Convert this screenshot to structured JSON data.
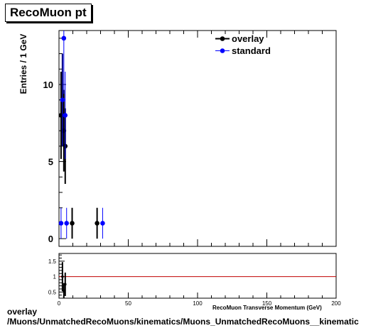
{
  "chart_data": [
    {
      "type": "scatter",
      "title": "RecoMuon pt",
      "xlabel": "RecoMuon Transverse Momentum (GeV)",
      "ylabel": "Entries / 1 GeV",
      "xlim": [
        0,
        200
      ],
      "ylim": [
        -0.5,
        13.5
      ],
      "yticks": [
        0,
        5,
        10
      ],
      "xticks": [
        0,
        50,
        100,
        150,
        200
      ],
      "legend_position": "top-right",
      "series": [
        {
          "name": "overlay",
          "color": "#000000",
          "x": [
            1.5,
            2.5,
            3.5,
            4.5,
            9.5,
            27.5
          ],
          "y": [
            8,
            9,
            7,
            6,
            1,
            1
          ],
          "yerr": [
            2.83,
            3.0,
            2.65,
            2.45,
            1,
            1
          ]
        },
        {
          "name": "standard",
          "color": "#0000ff",
          "x": [
            1.5,
            2.5,
            3.5,
            4.5,
            5.5,
            31.5
          ],
          "y": [
            1,
            9,
            13,
            8,
            1,
            1
          ],
          "yerr": [
            1,
            3.0,
            3.61,
            2.83,
            1,
            1
          ]
        }
      ]
    },
    {
      "type": "scatter",
      "subplot": "ratio",
      "xlim": [
        0,
        200
      ],
      "ylim": [
        0.3,
        1.75
      ],
      "yticks": [
        0.5,
        1,
        1.5
      ],
      "xticks": [
        0,
        50,
        100,
        150,
        200
      ],
      "reference_line": 1,
      "reference_color": "#c00000",
      "x": [
        2.5,
        3.5,
        4.5
      ],
      "y": [
        1.0,
        0.54,
        0.75
      ],
      "yerr": [
        0.47,
        0.25,
        0.38
      ]
    }
  ],
  "footer": {
    "line1": "overlay",
    "line2": "/Muons/UnmatchedRecoMuons/kinematics/Muons_UnmatchedRecoMuons__kinematic"
  }
}
